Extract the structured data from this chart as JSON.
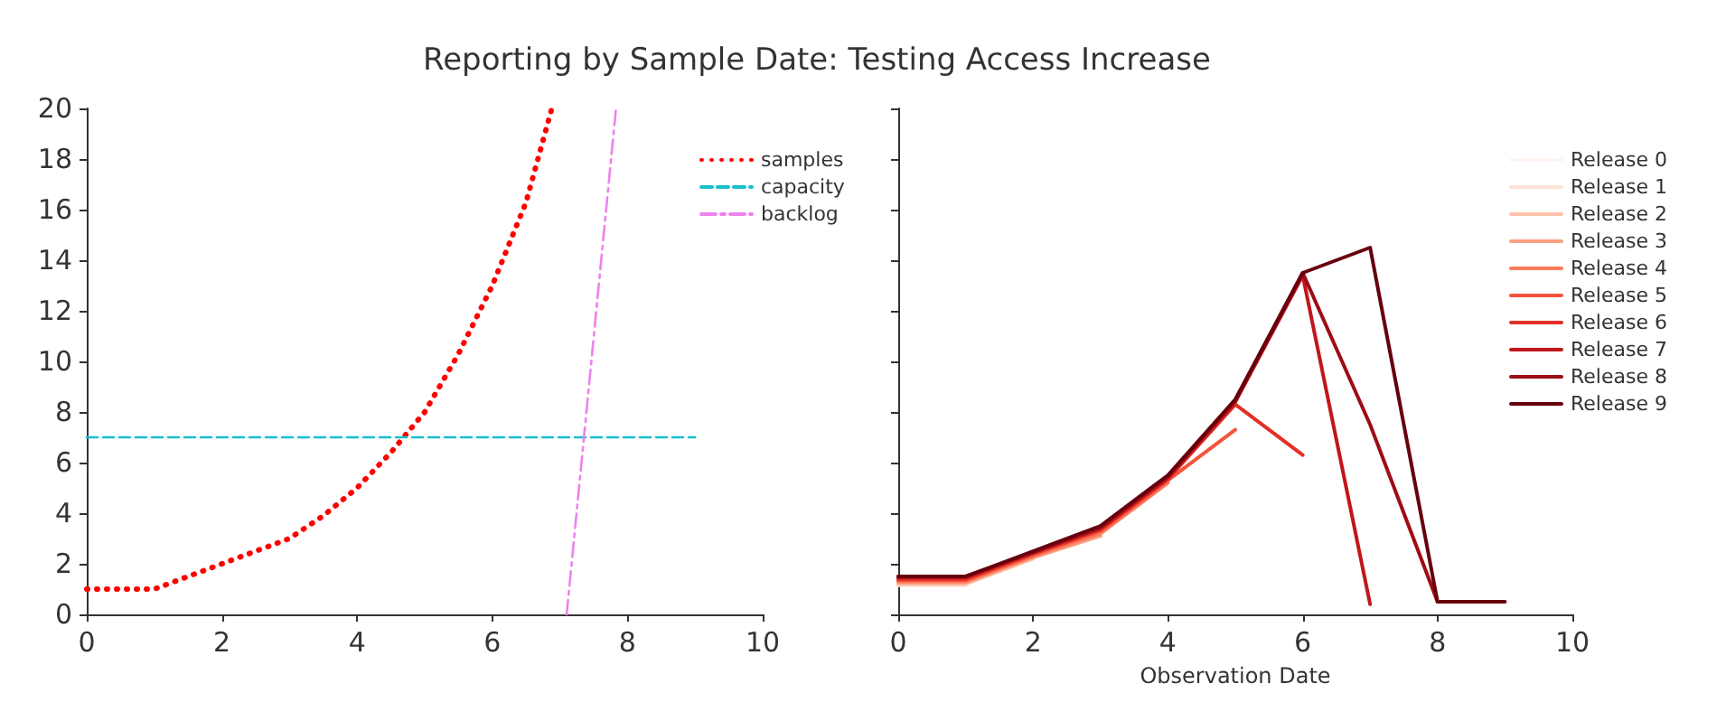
{
  "chart_data": [
    {
      "type": "line",
      "title": "Reporting by Sample Date: Testing Access Increase",
      "xlim": [
        0,
        10
      ],
      "xticks": [
        0,
        2,
        4,
        6,
        8,
        10
      ],
      "ylim": [
        0,
        20
      ],
      "yticks": [
        0,
        2,
        4,
        6,
        8,
        10,
        12,
        14,
        16,
        18,
        20
      ],
      "legend": "top right",
      "grid": false,
      "series": [
        {
          "name": "samples",
          "color": "#ff0000",
          "line_style": "dotted",
          "x": [
            0,
            0.5,
            1,
            1.5,
            2,
            2.5,
            3,
            3.5,
            4,
            4.5,
            5,
            5.5,
            6,
            6.5,
            6.88
          ],
          "values": [
            1,
            1,
            1,
            1.5,
            2,
            2.5,
            3,
            3.9,
            5,
            6.4,
            8,
            10.3,
            13,
            16.3,
            20
          ]
        },
        {
          "name": "capacity",
          "color": "#17becf",
          "line_style": "dashed",
          "x": [
            0,
            9
          ],
          "values": [
            7,
            7
          ]
        },
        {
          "name": "backlog",
          "color": "#ee82ee",
          "line_style": "dashdot",
          "x": [
            7.1,
            7.83
          ],
          "values": [
            0,
            20
          ]
        }
      ]
    },
    {
      "type": "line",
      "xlabel": "Observation Date",
      "xlim": [
        0,
        10
      ],
      "xticks": [
        0,
        2,
        4,
        6,
        8,
        10
      ],
      "ylim": [
        0,
        20
      ],
      "yticks": [
        0,
        2,
        4,
        6,
        8,
        10,
        12,
        14,
        16,
        18,
        20
      ],
      "tick_labels": "x",
      "legend": "top right",
      "grid": false,
      "line_style": "solid",
      "x": [
        0,
        1,
        2,
        3,
        4,
        5,
        6,
        7,
        8,
        9
      ],
      "series": [
        {
          "name": "Release 0",
          "color": "#fff5f0",
          "values": [
            null,
            null,
            null,
            null,
            null,
            null,
            null,
            null,
            null,
            null
          ]
        },
        {
          "name": "Release 1",
          "color": "#fee2d5",
          "values": [
            1.15,
            1.15,
            null,
            null,
            null,
            null,
            null,
            null,
            null,
            null
          ]
        },
        {
          "name": "Release 2",
          "color": "#fcc3ab",
          "values": [
            1.2,
            1.2,
            2.2,
            null,
            null,
            null,
            null,
            null,
            null,
            null
          ]
        },
        {
          "name": "Release 3",
          "color": "#fc9f81",
          "values": [
            1.25,
            1.25,
            2.25,
            3.1,
            null,
            null,
            null,
            null,
            null,
            null
          ]
        },
        {
          "name": "Release 4",
          "color": "#fb7b5b",
          "values": [
            1.3,
            1.3,
            2.3,
            3.2,
            5.2,
            null,
            null,
            null,
            null,
            null
          ]
        },
        {
          "name": "Release 5",
          "color": "#f5543c",
          "values": [
            1.35,
            1.35,
            2.35,
            3.3,
            5.3,
            7.3,
            null,
            null,
            null,
            null
          ]
        },
        {
          "name": "Release 6",
          "color": "#e32f27",
          "values": [
            1.4,
            1.4,
            2.4,
            3.35,
            5.35,
            8.3,
            6.3,
            null,
            null,
            null
          ]
        },
        {
          "name": "Release 7",
          "color": "#c1161b",
          "values": [
            1.45,
            1.45,
            2.45,
            3.4,
            5.4,
            8.4,
            13.4,
            0.4,
            null,
            null
          ]
        },
        {
          "name": "Release 8",
          "color": "#9d0d14",
          "values": [
            1.5,
            1.5,
            2.45,
            3.45,
            5.45,
            8.45,
            13.5,
            7.5,
            0.5,
            null
          ]
        },
        {
          "name": "Release 9",
          "color": "#67000d",
          "values": [
            1.5,
            1.5,
            2.5,
            3.5,
            5.5,
            8.5,
            13.5,
            14.5,
            0.5,
            0.5
          ]
        }
      ]
    }
  ]
}
